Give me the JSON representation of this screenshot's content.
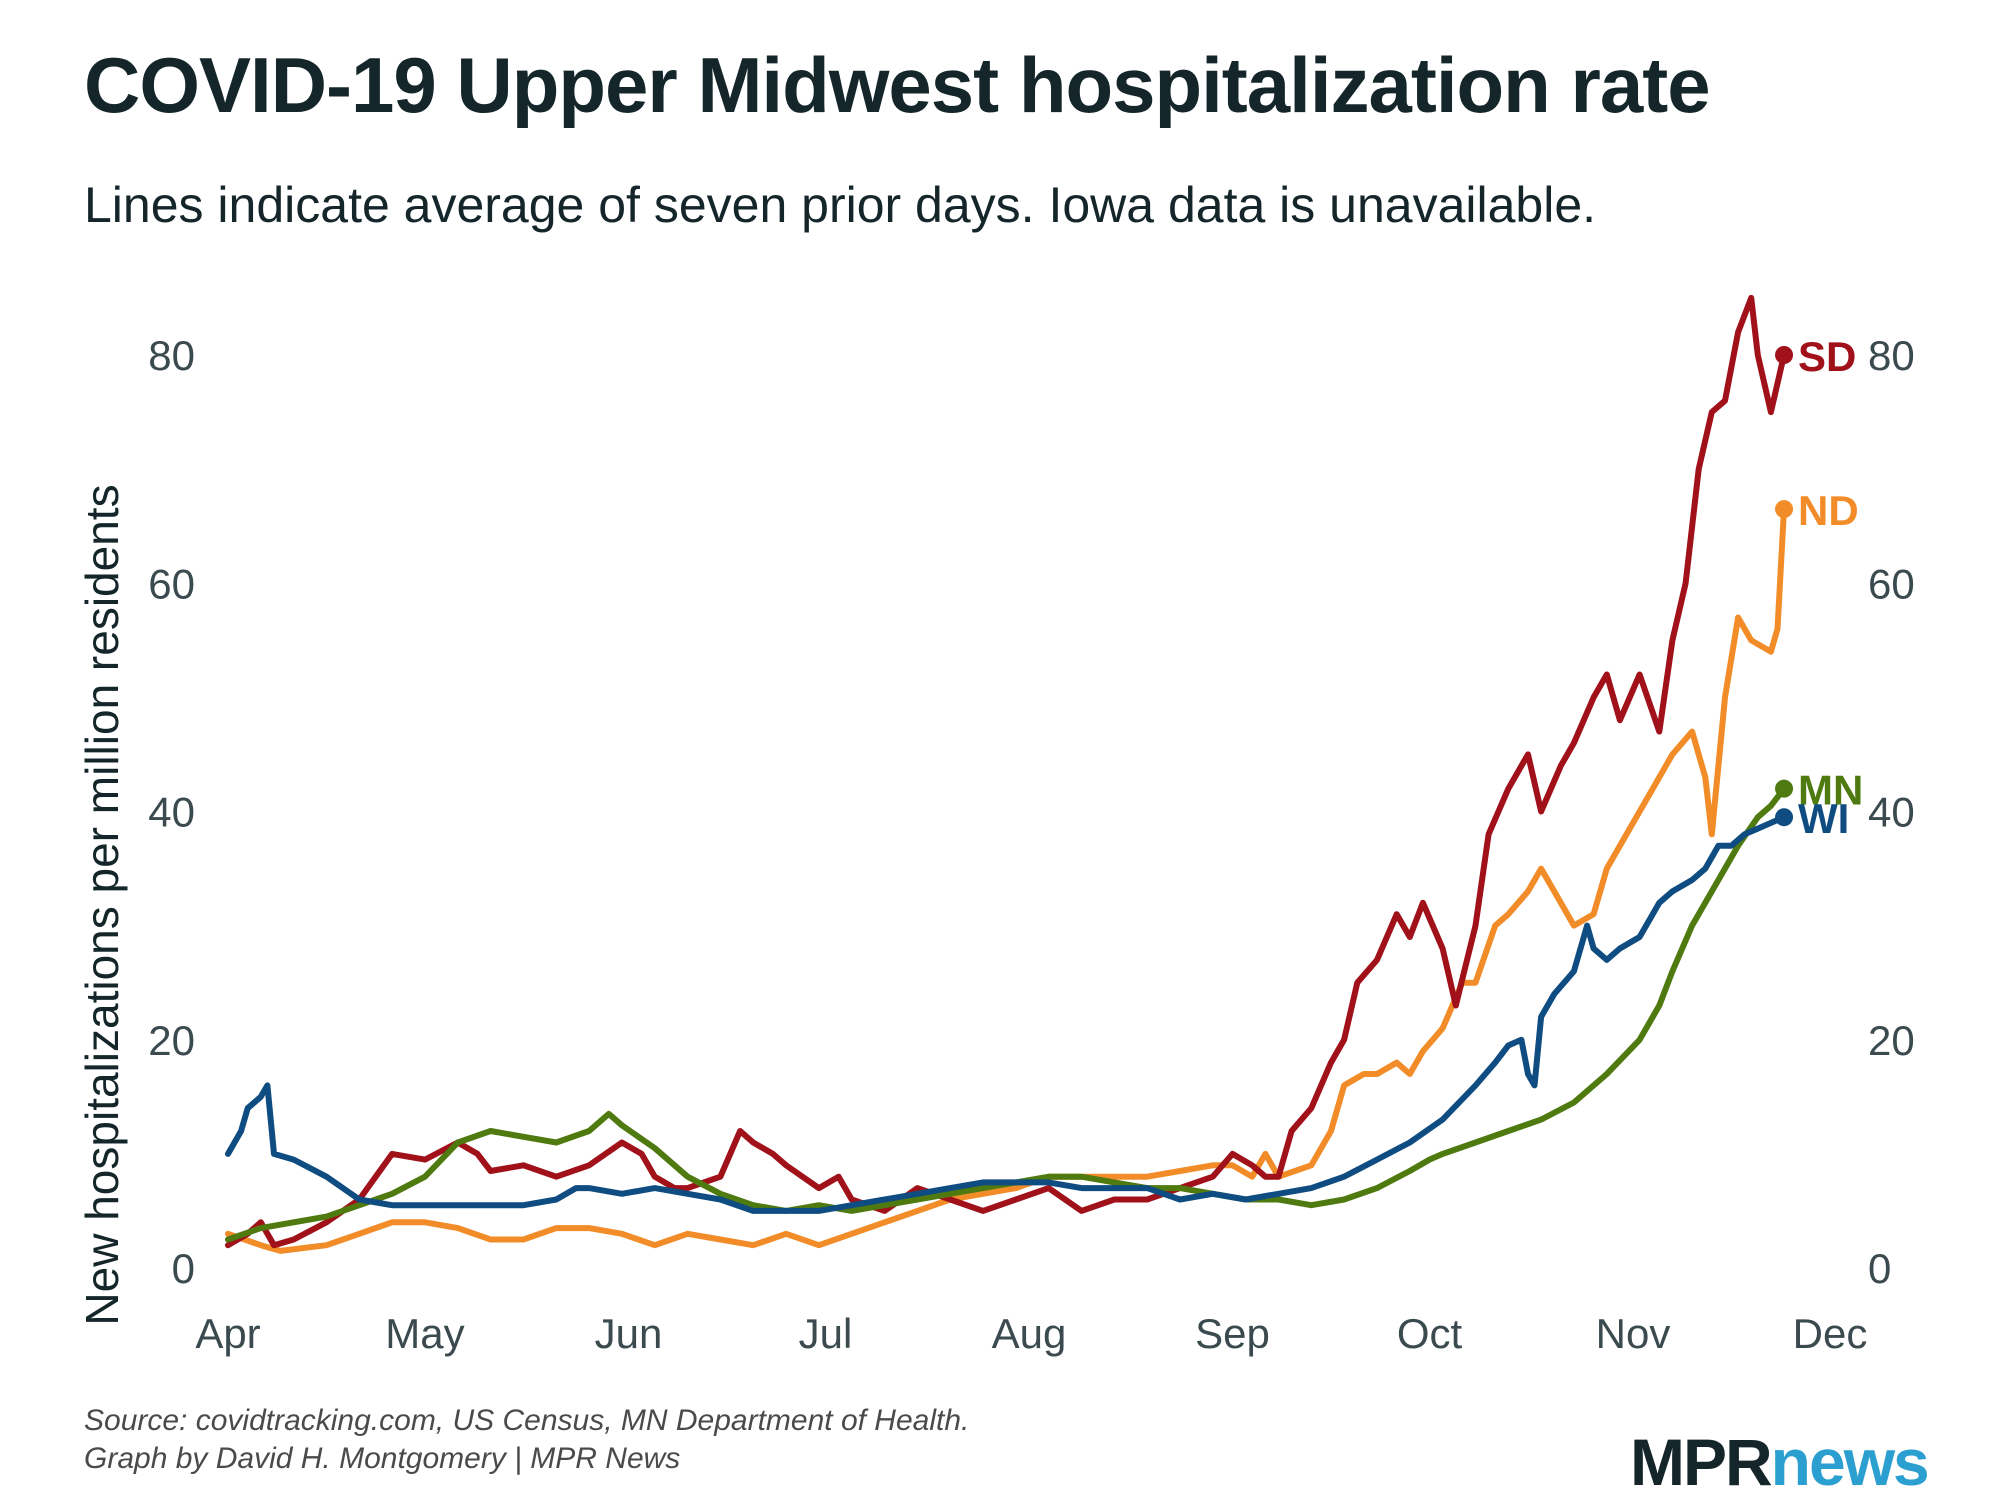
{
  "title": "COVID-19 Upper Midwest hospitalization rate",
  "subtitle": "Lines indicate average of seven prior days. Iowa data is unavailable.",
  "source_line1": "Source: covidtracking.com, US Census, MN Department of Health.",
  "source_line2": "Graph by David H. Montgomery | MPR News",
  "logo": {
    "mpr": "MPR",
    "news": "news"
  },
  "chart_data": {
    "type": "line",
    "ylabel": "New hospitalizations per million residents",
    "ylim": [
      0,
      85
    ],
    "yticks": [
      0,
      20,
      40,
      60,
      80
    ],
    "x_range_days": [
      0,
      244
    ],
    "month_ticks": [
      {
        "label": "Apr",
        "day": 0
      },
      {
        "label": "May",
        "day": 30
      },
      {
        "label": "Jun",
        "day": 61
      },
      {
        "label": "Jul",
        "day": 91
      },
      {
        "label": "Aug",
        "day": 122
      },
      {
        "label": "Sep",
        "day": 153
      },
      {
        "label": "Oct",
        "day": 183
      },
      {
        "label": "Nov",
        "day": 214
      },
      {
        "label": "Dec",
        "day": 244
      }
    ],
    "series": [
      {
        "name": "ND",
        "color": "#f28c28",
        "points": [
          [
            0,
            3
          ],
          [
            5,
            2
          ],
          [
            8,
            1.5
          ],
          [
            15,
            2
          ],
          [
            20,
            3
          ],
          [
            25,
            4
          ],
          [
            30,
            4
          ],
          [
            35,
            3.5
          ],
          [
            40,
            2.5
          ],
          [
            45,
            2.5
          ],
          [
            50,
            3.5
          ],
          [
            55,
            3.5
          ],
          [
            60,
            3
          ],
          [
            65,
            2
          ],
          [
            70,
            3
          ],
          [
            75,
            2.5
          ],
          [
            80,
            2
          ],
          [
            85,
            3
          ],
          [
            90,
            2
          ],
          [
            95,
            3
          ],
          [
            100,
            4
          ],
          [
            105,
            5
          ],
          [
            110,
            6
          ],
          [
            115,
            6.5
          ],
          [
            120,
            7
          ],
          [
            125,
            8
          ],
          [
            130,
            8
          ],
          [
            135,
            8
          ],
          [
            140,
            8
          ],
          [
            145,
            8.5
          ],
          [
            150,
            9
          ],
          [
            153,
            9
          ],
          [
            156,
            8
          ],
          [
            158,
            10
          ],
          [
            160,
            8
          ],
          [
            165,
            9
          ],
          [
            168,
            12
          ],
          [
            170,
            16
          ],
          [
            173,
            17
          ],
          [
            175,
            17
          ],
          [
            178,
            18
          ],
          [
            180,
            17
          ],
          [
            182,
            19
          ],
          [
            185,
            21
          ],
          [
            188,
            25
          ],
          [
            190,
            25
          ],
          [
            193,
            30
          ],
          [
            195,
            31
          ],
          [
            198,
            33
          ],
          [
            200,
            35
          ],
          [
            203,
            32
          ],
          [
            205,
            30
          ],
          [
            208,
            31
          ],
          [
            210,
            35
          ],
          [
            212,
            37
          ],
          [
            215,
            40
          ],
          [
            218,
            43
          ],
          [
            220,
            45
          ],
          [
            223,
            47
          ],
          [
            225,
            43
          ],
          [
            226,
            38
          ],
          [
            228,
            50
          ],
          [
            230,
            57
          ],
          [
            232,
            55
          ],
          [
            235,
            54
          ],
          [
            236,
            56
          ],
          [
            237,
            66.5
          ]
        ]
      },
      {
        "name": "SD",
        "color": "#a0111a",
        "points": [
          [
            0,
            2
          ],
          [
            3,
            3
          ],
          [
            5,
            4
          ],
          [
            7,
            2
          ],
          [
            10,
            2.5
          ],
          [
            15,
            4
          ],
          [
            20,
            6
          ],
          [
            25,
            10
          ],
          [
            30,
            9.5
          ],
          [
            35,
            11
          ],
          [
            38,
            10
          ],
          [
            40,
            8.5
          ],
          [
            45,
            9
          ],
          [
            50,
            8
          ],
          [
            55,
            9
          ],
          [
            60,
            11
          ],
          [
            63,
            10
          ],
          [
            65,
            8
          ],
          [
            68,
            7
          ],
          [
            70,
            7
          ],
          [
            75,
            8
          ],
          [
            78,
            12
          ],
          [
            80,
            11
          ],
          [
            83,
            10
          ],
          [
            85,
            9
          ],
          [
            90,
            7
          ],
          [
            93,
            8
          ],
          [
            95,
            6
          ],
          [
            100,
            5
          ],
          [
            105,
            7
          ],
          [
            110,
            6
          ],
          [
            115,
            5
          ],
          [
            120,
            6
          ],
          [
            125,
            7
          ],
          [
            130,
            5
          ],
          [
            135,
            6
          ],
          [
            140,
            6
          ],
          [
            145,
            7
          ],
          [
            150,
            8
          ],
          [
            153,
            10
          ],
          [
            156,
            9
          ],
          [
            158,
            8
          ],
          [
            160,
            8
          ],
          [
            162,
            12
          ],
          [
            165,
            14
          ],
          [
            168,
            18
          ],
          [
            170,
            20
          ],
          [
            172,
            25
          ],
          [
            175,
            27
          ],
          [
            178,
            31
          ],
          [
            180,
            29
          ],
          [
            182,
            32
          ],
          [
            185,
            28
          ],
          [
            187,
            23
          ],
          [
            190,
            30
          ],
          [
            192,
            38
          ],
          [
            195,
            42
          ],
          [
            198,
            45
          ],
          [
            200,
            40
          ],
          [
            203,
            44
          ],
          [
            205,
            46
          ],
          [
            208,
            50
          ],
          [
            210,
            52
          ],
          [
            212,
            48
          ],
          [
            215,
            52
          ],
          [
            218,
            47
          ],
          [
            220,
            55
          ],
          [
            222,
            60
          ],
          [
            224,
            70
          ],
          [
            226,
            75
          ],
          [
            228,
            76
          ],
          [
            230,
            82
          ],
          [
            232,
            85
          ],
          [
            233,
            80
          ],
          [
            235,
            75
          ],
          [
            237,
            80
          ]
        ]
      },
      {
        "name": "MN",
        "color": "#4e7a0f",
        "points": [
          [
            0,
            2.5
          ],
          [
            5,
            3.5
          ],
          [
            10,
            4
          ],
          [
            15,
            4.5
          ],
          [
            20,
            5.5
          ],
          [
            25,
            6.5
          ],
          [
            30,
            8
          ],
          [
            35,
            11
          ],
          [
            40,
            12
          ],
          [
            45,
            11.5
          ],
          [
            50,
            11
          ],
          [
            55,
            12
          ],
          [
            58,
            13.5
          ],
          [
            60,
            12.5
          ],
          [
            65,
            10.5
          ],
          [
            70,
            8
          ],
          [
            75,
            6.5
          ],
          [
            80,
            5.5
          ],
          [
            85,
            5
          ],
          [
            90,
            5.5
          ],
          [
            95,
            5
          ],
          [
            100,
            5.5
          ],
          [
            105,
            6
          ],
          [
            110,
            6.5
          ],
          [
            115,
            7
          ],
          [
            120,
            7.5
          ],
          [
            125,
            8
          ],
          [
            130,
            8
          ],
          [
            135,
            7.5
          ],
          [
            140,
            7
          ],
          [
            145,
            7
          ],
          [
            150,
            6.5
          ],
          [
            155,
            6
          ],
          [
            160,
            6
          ],
          [
            165,
            5.5
          ],
          [
            170,
            6
          ],
          [
            175,
            7
          ],
          [
            180,
            8.5
          ],
          [
            183,
            9.5
          ],
          [
            185,
            10
          ],
          [
            190,
            11
          ],
          [
            195,
            12
          ],
          [
            200,
            13
          ],
          [
            205,
            14.5
          ],
          [
            210,
            17
          ],
          [
            215,
            20
          ],
          [
            218,
            23
          ],
          [
            220,
            26
          ],
          [
            223,
            30
          ],
          [
            226,
            33
          ],
          [
            230,
            37
          ],
          [
            233,
            39.5
          ],
          [
            235,
            40.5
          ],
          [
            237,
            42
          ]
        ]
      },
      {
        "name": "WI",
        "color": "#0f4c81",
        "points": [
          [
            0,
            10
          ],
          [
            2,
            12
          ],
          [
            3,
            14
          ],
          [
            5,
            15
          ],
          [
            6,
            16
          ],
          [
            7,
            10
          ],
          [
            10,
            9.5
          ],
          [
            15,
            8
          ],
          [
            20,
            6
          ],
          [
            25,
            5.5
          ],
          [
            30,
            5.5
          ],
          [
            35,
            5.5
          ],
          [
            40,
            5.5
          ],
          [
            45,
            5.5
          ],
          [
            50,
            6
          ],
          [
            53,
            7
          ],
          [
            55,
            7
          ],
          [
            60,
            6.5
          ],
          [
            65,
            7
          ],
          [
            70,
            6.5
          ],
          [
            75,
            6
          ],
          [
            80,
            5
          ],
          [
            85,
            5
          ],
          [
            90,
            5
          ],
          [
            95,
            5.5
          ],
          [
            100,
            6
          ],
          [
            105,
            6.5
          ],
          [
            110,
            7
          ],
          [
            115,
            7.5
          ],
          [
            120,
            7.5
          ],
          [
            125,
            7.5
          ],
          [
            130,
            7
          ],
          [
            135,
            7
          ],
          [
            140,
            7
          ],
          [
            145,
            6
          ],
          [
            150,
            6.5
          ],
          [
            155,
            6
          ],
          [
            160,
            6.5
          ],
          [
            165,
            7
          ],
          [
            170,
            8
          ],
          [
            175,
            9.5
          ],
          [
            180,
            11
          ],
          [
            185,
            13
          ],
          [
            190,
            16
          ],
          [
            193,
            18
          ],
          [
            195,
            19.5
          ],
          [
            197,
            20
          ],
          [
            198,
            17
          ],
          [
            199,
            16
          ],
          [
            200,
            22
          ],
          [
            202,
            24
          ],
          [
            205,
            26
          ],
          [
            207,
            30
          ],
          [
            208,
            28
          ],
          [
            210,
            27
          ],
          [
            212,
            28
          ],
          [
            215,
            29
          ],
          [
            218,
            32
          ],
          [
            220,
            33
          ],
          [
            223,
            34
          ],
          [
            225,
            35
          ],
          [
            227,
            37
          ],
          [
            229,
            37
          ],
          [
            231,
            38
          ],
          [
            233,
            38.5
          ],
          [
            235,
            39
          ],
          [
            237,
            39.5
          ]
        ]
      }
    ],
    "end_labels": [
      {
        "name": "SD",
        "value": 80,
        "label": "SD",
        "color": "#a0111a"
      },
      {
        "name": "ND",
        "value": 66.5,
        "label": "ND",
        "color": "#f28c28"
      },
      {
        "name": "MN",
        "value": 42,
        "label": "MN",
        "color": "#4e7a0f"
      },
      {
        "name": "WI",
        "value": 39.5,
        "label": "WI",
        "color": "#0f4c81"
      }
    ]
  }
}
